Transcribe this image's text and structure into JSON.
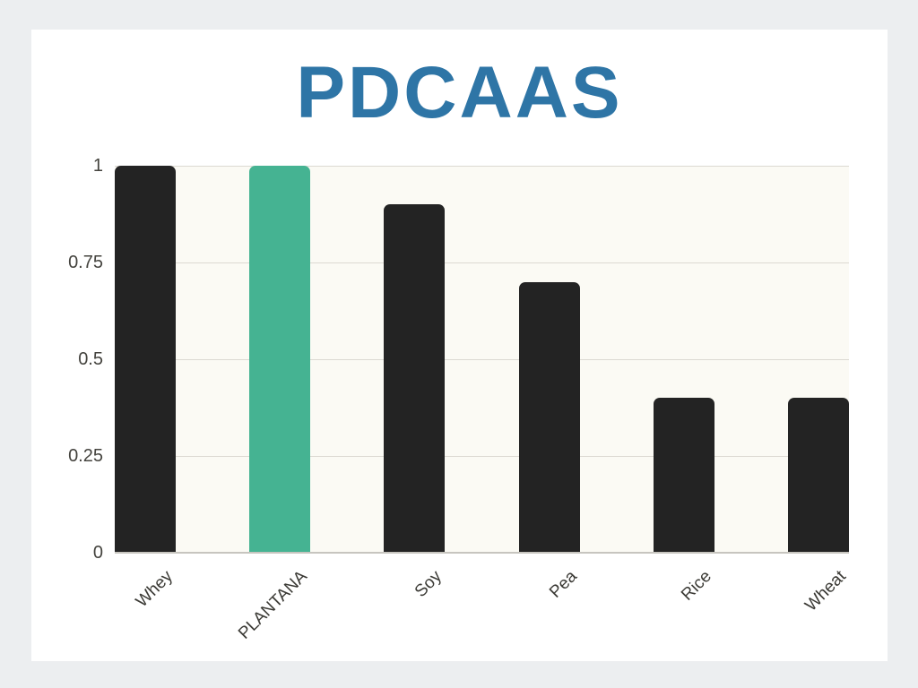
{
  "page": {
    "background_color": "#eceef0",
    "card_color": "#ffffff"
  },
  "chart_data": {
    "type": "bar",
    "title": "PDCAAS",
    "title_color": "#2e75a6",
    "categories": [
      "Whey",
      "PLANTANA",
      "Soy",
      "Pea",
      "Rice",
      "Wheat"
    ],
    "values": [
      1,
      1,
      0.9,
      0.7,
      0.4,
      0.4
    ],
    "bar_default_color": "#232323",
    "highlight_index": 1,
    "highlight_color": "#45b392",
    "xlabel": "",
    "ylabel": "",
    "ylim": [
      0,
      1
    ],
    "yticks": [
      0,
      0.25,
      0.5,
      0.75,
      1
    ],
    "ytick_labels": [
      "0",
      "0.25",
      "0.5",
      "0.75",
      "1"
    ],
    "grid": true,
    "legend": false,
    "x_label_rotation_deg": -45,
    "plot_background": "#fbfaf4",
    "gridline_color": "#dcd9d2",
    "axis_line_color": "#c7c5bf",
    "tick_label_color": "#44433e"
  }
}
